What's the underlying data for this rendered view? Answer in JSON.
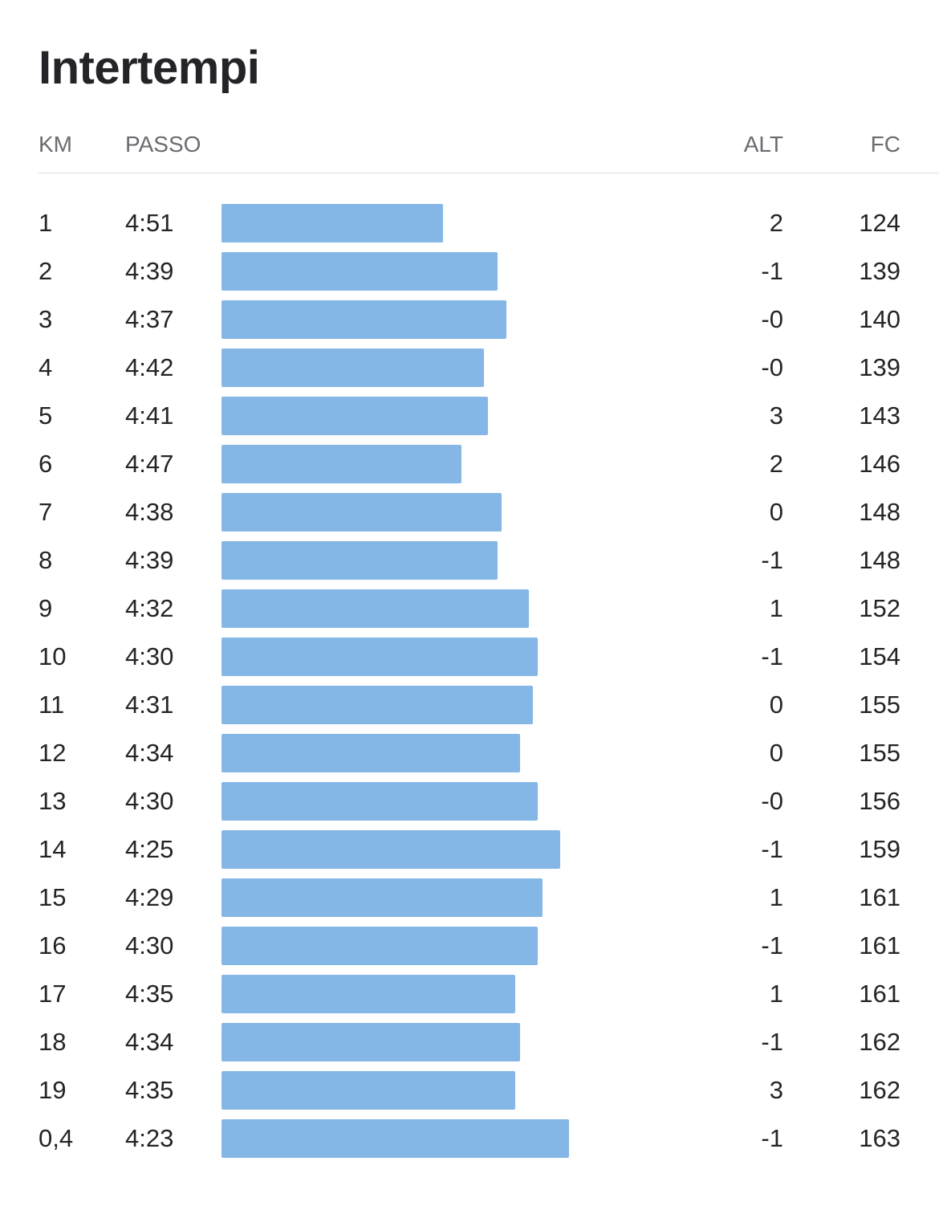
{
  "page": {
    "title": "Intertempi"
  },
  "columns": {
    "km": "KM",
    "pace": "PASSO",
    "alt": "ALT",
    "hr": "FC"
  },
  "colors": {
    "bar": "#85b7e6"
  },
  "chart_data": {
    "type": "bar",
    "orientation": "horizontal",
    "title": "Intertempi",
    "categories": [
      "1",
      "2",
      "3",
      "4",
      "5",
      "6",
      "7",
      "8",
      "9",
      "10",
      "11",
      "12",
      "13",
      "14",
      "15",
      "16",
      "17",
      "18",
      "19",
      "0,4"
    ],
    "series": [
      {
        "name": "PASSO",
        "values": [
          "4:51",
          "4:39",
          "4:37",
          "4:42",
          "4:41",
          "4:47",
          "4:38",
          "4:39",
          "4:32",
          "4:30",
          "4:31",
          "4:34",
          "4:30",
          "4:25",
          "4:29",
          "4:30",
          "4:35",
          "4:34",
          "4:35",
          "4:23"
        ]
      }
    ],
    "rows": [
      {
        "km": "1",
        "pace": "4:51",
        "alt": "2",
        "hr": "124"
      },
      {
        "km": "2",
        "pace": "4:39",
        "alt": "-1",
        "hr": "139"
      },
      {
        "km": "3",
        "pace": "4:37",
        "alt": "-0",
        "hr": "140"
      },
      {
        "km": "4",
        "pace": "4:42",
        "alt": "-0",
        "hr": "139"
      },
      {
        "km": "5",
        "pace": "4:41",
        "alt": "3",
        "hr": "143"
      },
      {
        "km": "6",
        "pace": "4:47",
        "alt": "2",
        "hr": "146"
      },
      {
        "km": "7",
        "pace": "4:38",
        "alt": "0",
        "hr": "148"
      },
      {
        "km": "8",
        "pace": "4:39",
        "alt": "-1",
        "hr": "148"
      },
      {
        "km": "9",
        "pace": "4:32",
        "alt": "1",
        "hr": "152"
      },
      {
        "km": "10",
        "pace": "4:30",
        "alt": "-1",
        "hr": "154"
      },
      {
        "km": "11",
        "pace": "4:31",
        "alt": "0",
        "hr": "155"
      },
      {
        "km": "12",
        "pace": "4:34",
        "alt": "0",
        "hr": "155"
      },
      {
        "km": "13",
        "pace": "4:30",
        "alt": "-0",
        "hr": "156"
      },
      {
        "km": "14",
        "pace": "4:25",
        "alt": "-1",
        "hr": "159"
      },
      {
        "km": "15",
        "pace": "4:29",
        "alt": "1",
        "hr": "161"
      },
      {
        "km": "16",
        "pace": "4:30",
        "alt": "-1",
        "hr": "161"
      },
      {
        "km": "17",
        "pace": "4:35",
        "alt": "1",
        "hr": "161"
      },
      {
        "km": "18",
        "pace": "4:34",
        "alt": "-1",
        "hr": "162"
      },
      {
        "km": "19",
        "pace": "4:35",
        "alt": "3",
        "hr": "162"
      },
      {
        "km": "0,4",
        "pace": "4:23",
        "alt": "-1",
        "hr": "163"
      }
    ],
    "grid": false,
    "legend": "none"
  }
}
